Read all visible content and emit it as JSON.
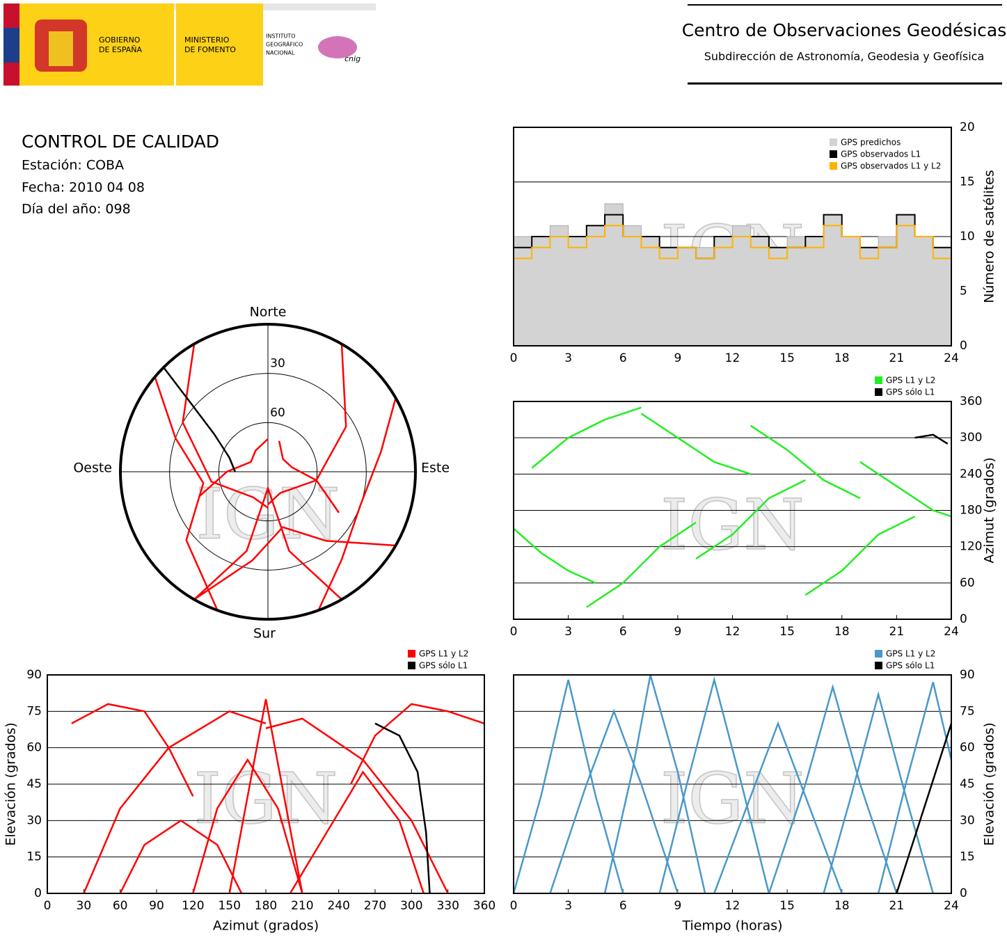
{
  "header": {
    "gov_lines": [
      "GOBIERNO",
      "DE ESPAÑA"
    ],
    "ministry_lines": [
      "MINISTERIO",
      "DE FOMENTO"
    ],
    "institute_lines": [
      "INSTITUTO",
      "GEOGRÁFICO",
      "NACIONAL"
    ],
    "cnig": "cnig",
    "center_title": "Centro de Observaciones Geodésicas",
    "center_subtitle": "Subdirección de Astronomía, Geodesia y Geofísica"
  },
  "info": {
    "title": "CONTROL DE CALIDAD",
    "station": "Estación: COBA",
    "date": "Fecha: 2010 04 08",
    "doy": "Día del año: 098"
  },
  "watermark": "IGN",
  "chart_data": [
    {
      "type": "step",
      "ylabel": "Número de satélites",
      "xlim": [
        0,
        24
      ],
      "xticks": [
        0,
        3,
        6,
        9,
        12,
        15,
        18,
        21,
        24
      ],
      "ylim": [
        0,
        20
      ],
      "yticks": [
        0,
        5,
        10,
        15,
        20
      ],
      "grid": "y",
      "yaxis_side": "right",
      "legend": "top-right",
      "x": [
        0,
        1,
        2,
        3,
        4,
        5,
        6,
        7,
        8,
        9,
        10,
        11,
        12,
        13,
        14,
        15,
        16,
        17,
        18,
        19,
        20,
        21,
        22,
        23,
        24
      ],
      "series": [
        {
          "name": "GPS predichos",
          "color": "#d3d3d3",
          "area": true,
          "values": [
            10,
            10,
            11,
            10,
            11,
            13,
            11,
            10,
            9,
            9,
            9,
            10,
            11,
            10,
            9,
            10,
            10,
            12,
            10,
            9,
            10,
            12,
            10,
            9,
            9
          ]
        },
        {
          "name": "GPS observados L1",
          "color": "#000000",
          "values": [
            9,
            10,
            10,
            10,
            11,
            12,
            10,
            10,
            9,
            9,
            8,
            10,
            10,
            10,
            9,
            9,
            10,
            12,
            10,
            9,
            9,
            12,
            10,
            9,
            9
          ]
        },
        {
          "name": "GPS observados L1 y L2",
          "color": "#ffb300",
          "values": [
            8,
            9,
            10,
            9,
            10,
            11,
            10,
            9,
            8,
            9,
            8,
            9,
            10,
            9,
            8,
            9,
            9,
            11,
            10,
            8,
            9,
            11,
            10,
            8,
            9
          ]
        }
      ]
    },
    {
      "type": "polar",
      "rlim": [
        0,
        90
      ],
      "rticks": [
        30,
        60
      ],
      "directions": {
        "north": "Norte",
        "south": "Sur",
        "east": "Este",
        "west": "Oeste"
      },
      "series": [
        {
          "name": "GPS L1 y L2",
          "color": "#ff0000",
          "x": [
            30,
            60,
            100,
            150,
            180,
            null,
            330,
            300,
            260,
            210,
            180,
            null,
            120,
            140,
            165,
            190,
            210,
            null,
            150,
            165,
            180,
            195,
            210,
            null,
            60,
            80,
            110,
            140,
            160,
            null,
            200,
            230,
            260,
            290,
            310,
            null,
            20,
            50,
            80,
            100,
            120,
            null,
            360,
            330,
            300,
            270,
            250
          ],
          "values": [
            0,
            35,
            60,
            75,
            70,
            null,
            0,
            30,
            55,
            72,
            68,
            null,
            0,
            35,
            55,
            35,
            0,
            null,
            0,
            40,
            80,
            40,
            0,
            null,
            0,
            20,
            30,
            20,
            0,
            null,
            0,
            25,
            50,
            30,
            0,
            null,
            70,
            78,
            75,
            60,
            40,
            null,
            70,
            75,
            78,
            65,
            45
          ]
        },
        {
          "name": "GPS sólo L1",
          "color": "#000000",
          "x": [
            270,
            290,
            305,
            312,
            315
          ],
          "values": [
            70,
            65,
            50,
            25,
            0
          ]
        }
      ]
    },
    {
      "type": "line",
      "ylabel": "Azimut (grados)",
      "xlim": [
        0,
        24
      ],
      "xticks": [
        0,
        3,
        6,
        9,
        12,
        15,
        18,
        21,
        24
      ],
      "ylim": [
        0,
        360
      ],
      "yticks": [
        0,
        60,
        120,
        180,
        240,
        300,
        360
      ],
      "grid": "y",
      "yaxis_side": "right",
      "legend": "top-right-outside",
      "series": [
        {
          "name": "GPS L1 y L2",
          "color": "#22ee22",
          "x": [
            0,
            1.5,
            3,
            4.5,
            null,
            1,
            3,
            5,
            7,
            null,
            4,
            6,
            8,
            10,
            null,
            7,
            9,
            11,
            13,
            null,
            10,
            12,
            14,
            16,
            null,
            13,
            15,
            17,
            19,
            null,
            16,
            18,
            20,
            22,
            null,
            19,
            21,
            23,
            24
          ],
          "values": [
            150,
            110,
            80,
            60,
            null,
            250,
            300,
            330,
            350,
            null,
            20,
            60,
            120,
            160,
            null,
            340,
            300,
            260,
            240,
            null,
            100,
            140,
            200,
            230,
            null,
            320,
            280,
            230,
            200,
            null,
            40,
            80,
            140,
            170,
            null,
            260,
            220,
            180,
            170
          ]
        },
        {
          "name": "GPS sólo L1",
          "color": "#000000",
          "x": [
            22,
            23,
            23.8
          ],
          "values": [
            300,
            305,
            290
          ]
        }
      ]
    },
    {
      "type": "line",
      "xlabel": "Azimut (grados)",
      "ylabel": "Elevación (grados)",
      "xlim": [
        0,
        360
      ],
      "xticks": [
        0,
        30,
        60,
        90,
        120,
        150,
        180,
        210,
        240,
        270,
        300,
        330,
        360
      ],
      "ylim": [
        0,
        90
      ],
      "yticks": [
        0,
        15,
        30,
        45,
        60,
        75,
        90
      ],
      "grid": "y",
      "yaxis_side": "left",
      "legend": "top-right-outside",
      "series": [
        {
          "name": "GPS L1 y L2",
          "color": "#ff0000",
          "x": [
            30,
            60,
            100,
            150,
            180,
            null,
            330,
            300,
            260,
            210,
            180,
            null,
            120,
            140,
            165,
            190,
            210,
            null,
            150,
            165,
            180,
            195,
            210,
            null,
            60,
            80,
            110,
            140,
            160,
            null,
            200,
            230,
            260,
            290,
            310,
            null,
            20,
            50,
            80,
            100,
            120,
            null,
            360,
            330,
            300,
            270,
            250
          ],
          "values": [
            0,
            35,
            60,
            75,
            70,
            null,
            0,
            30,
            55,
            72,
            68,
            null,
            0,
            35,
            55,
            35,
            0,
            null,
            0,
            40,
            80,
            40,
            0,
            null,
            0,
            20,
            30,
            20,
            0,
            null,
            0,
            25,
            50,
            30,
            0,
            null,
            70,
            78,
            75,
            60,
            40,
            null,
            70,
            75,
            78,
            65,
            45
          ]
        },
        {
          "name": "GPS sólo L1",
          "color": "#000000",
          "x": [
            270,
            290,
            305,
            312,
            315
          ],
          "values": [
            70,
            65,
            50,
            25,
            0
          ]
        }
      ]
    },
    {
      "type": "line",
      "xlabel": "Tiempo (horas)",
      "ylabel": "Elevación (grados)",
      "xlim": [
        0,
        24
      ],
      "xticks": [
        0,
        3,
        6,
        9,
        12,
        15,
        18,
        21,
        24
      ],
      "ylim": [
        0,
        90
      ],
      "yticks": [
        0,
        15,
        30,
        45,
        60,
        75,
        90
      ],
      "grid": "y",
      "yaxis_side": "right",
      "legend": "top-right-outside",
      "series": [
        {
          "name": "GPS L1 y L2",
          "color": "#4a98c9",
          "x": [
            0,
            1.5,
            3,
            4.5,
            6,
            null,
            2,
            4,
            5.5,
            7,
            9,
            null,
            5,
            6.5,
            7.5,
            9,
            10.5,
            null,
            8,
            9.5,
            11,
            12.5,
            14,
            null,
            11,
            13,
            14.5,
            16,
            18,
            null,
            14,
            16,
            17.5,
            19,
            21,
            null,
            17,
            18.5,
            20,
            21.5,
            23,
            null,
            20,
            21.5,
            23,
            24
          ],
          "values": [
            0,
            40,
            88,
            40,
            0,
            null,
            0,
            45,
            75,
            45,
            0,
            null,
            0,
            50,
            90,
            50,
            0,
            null,
            0,
            45,
            88,
            45,
            0,
            null,
            0,
            40,
            70,
            40,
            0,
            null,
            0,
            45,
            85,
            45,
            0,
            null,
            0,
            40,
            82,
            40,
            0,
            null,
            0,
            45,
            87,
            55
          ]
        },
        {
          "name": "GPS sólo L1",
          "color": "#000000",
          "x": [
            21,
            22.5,
            24
          ],
          "values": [
            0,
            35,
            70
          ]
        }
      ]
    }
  ]
}
